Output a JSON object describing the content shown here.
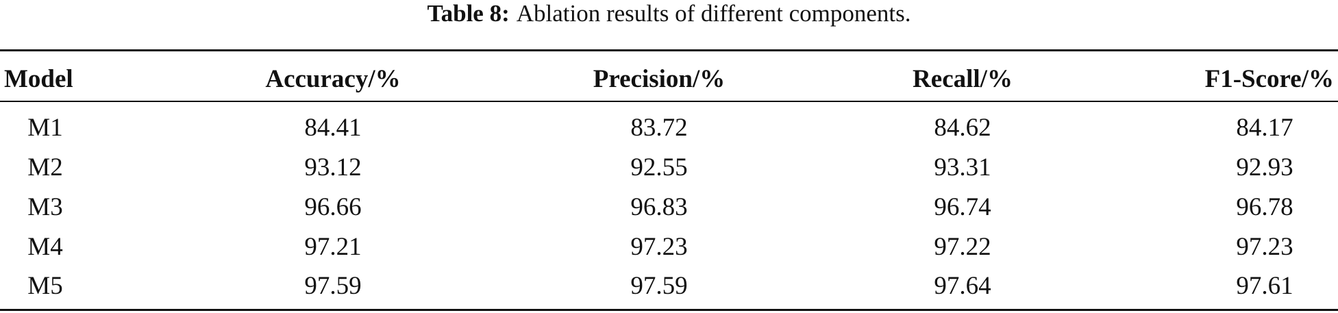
{
  "caption": {
    "label": "Table 8:",
    "text": "Ablation results of different components."
  },
  "table": {
    "header": [
      "Model",
      "Accuracy/%",
      "Precision/%",
      "Recall/%",
      "F1-Score/%"
    ],
    "rows": [
      [
        "M1",
        "84.41",
        "83.72",
        "84.62",
        "84.17"
      ],
      [
        "M2",
        "93.12",
        "92.55",
        "93.31",
        "92.93"
      ],
      [
        "M3",
        "96.66",
        "96.83",
        "96.74",
        "96.78"
      ],
      [
        "M4",
        "97.21",
        "97.23",
        "97.22",
        "97.23"
      ],
      [
        "M5",
        "97.59",
        "97.59",
        "97.64",
        "97.61"
      ]
    ]
  }
}
